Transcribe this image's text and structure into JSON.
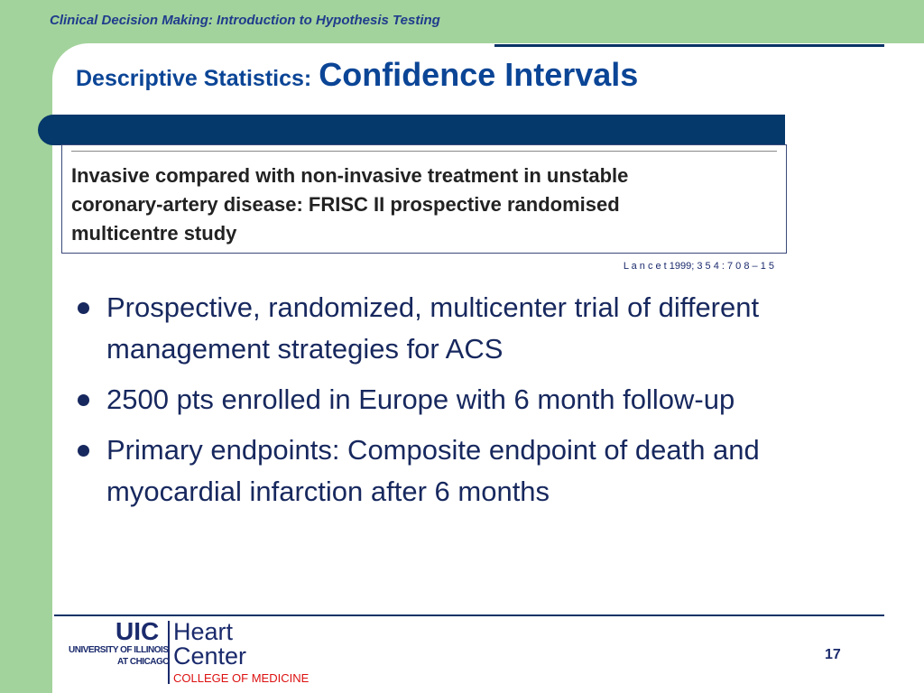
{
  "header": {
    "course": "Clinical Decision Making: Introduction to Hypothesis Testing"
  },
  "title": {
    "prefix": "Descriptive Statistics:",
    "main": "Confidence Intervals"
  },
  "article": {
    "title_lines": [
      "Invasive compared with non-invasive treatment in unstable",
      "coronary-artery disease: FRISC II prospective randomised",
      "multicentre study"
    ]
  },
  "citation": "L a n c e t 1999; 3 5 4 : 7 0 8 – 1 5",
  "bullets": [
    "Prospective, randomized, multicenter trial of different management strategies for ACS",
    "2500 pts enrolled in Europe with 6 month follow-up",
    "Primary endpoints: Composite endpoint of death and myocardial infarction after 6 months"
  ],
  "footer": {
    "university_line1": "UNIVERSITY OF ILLINOIS",
    "university_line2": "AT CHICAGO",
    "uic": "UIC",
    "heart": "Heart",
    "center": "Center",
    "college": "COLLEGE OF MEDICINE",
    "page_number": "17"
  }
}
